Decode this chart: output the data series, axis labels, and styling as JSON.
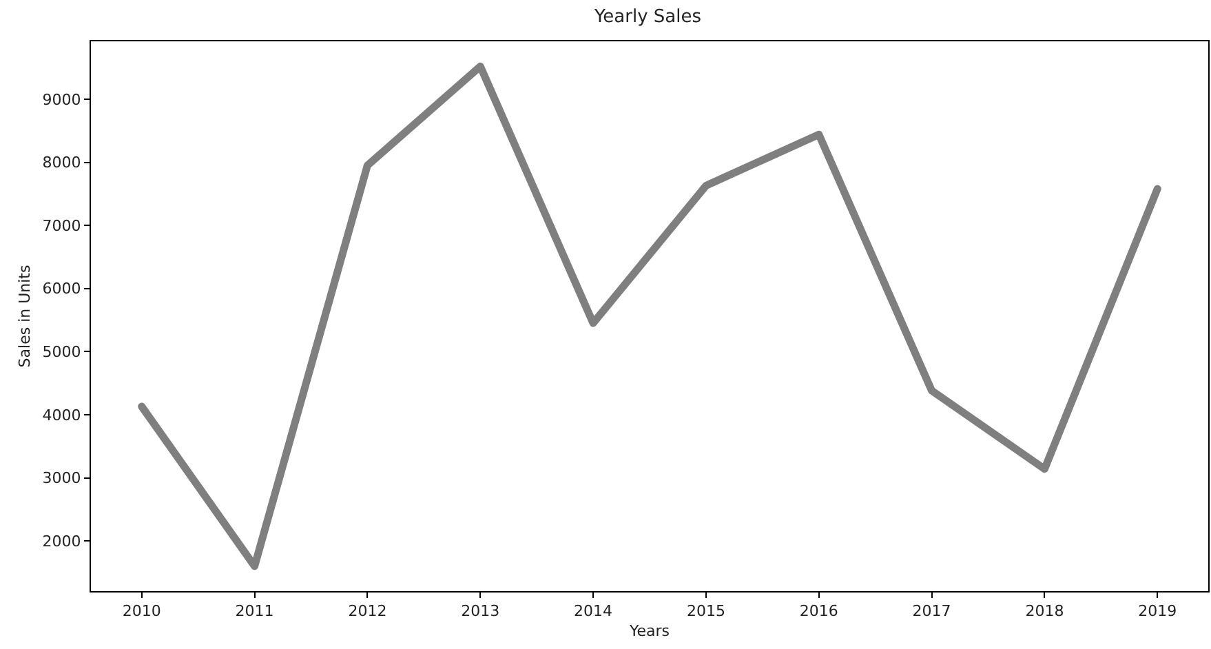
{
  "chart_data": {
    "type": "line",
    "title": "Yearly Sales",
    "xlabel": "Years",
    "ylabel": "Sales in Units",
    "x": [
      2010,
      2011,
      2012,
      2013,
      2014,
      2015,
      2016,
      2017,
      2018,
      2019
    ],
    "series": [
      {
        "color": "#7f7f7f",
        "values": [
          4130,
          1600,
          7950,
          9520,
          5450,
          7630,
          8440,
          4380,
          3140,
          7580
        ]
      }
    ],
    "xlim": [
      2009.55,
      2019.45
    ],
    "xticks": [
      2010,
      2011,
      2012,
      2013,
      2014,
      2015,
      2016,
      2017,
      2018,
      2019
    ],
    "ylim": [
      1204,
      9916
    ],
    "yticks": [
      2000,
      3000,
      4000,
      5000,
      6000,
      7000,
      8000,
      9000
    ],
    "marker": "none",
    "line_style": "solid"
  }
}
